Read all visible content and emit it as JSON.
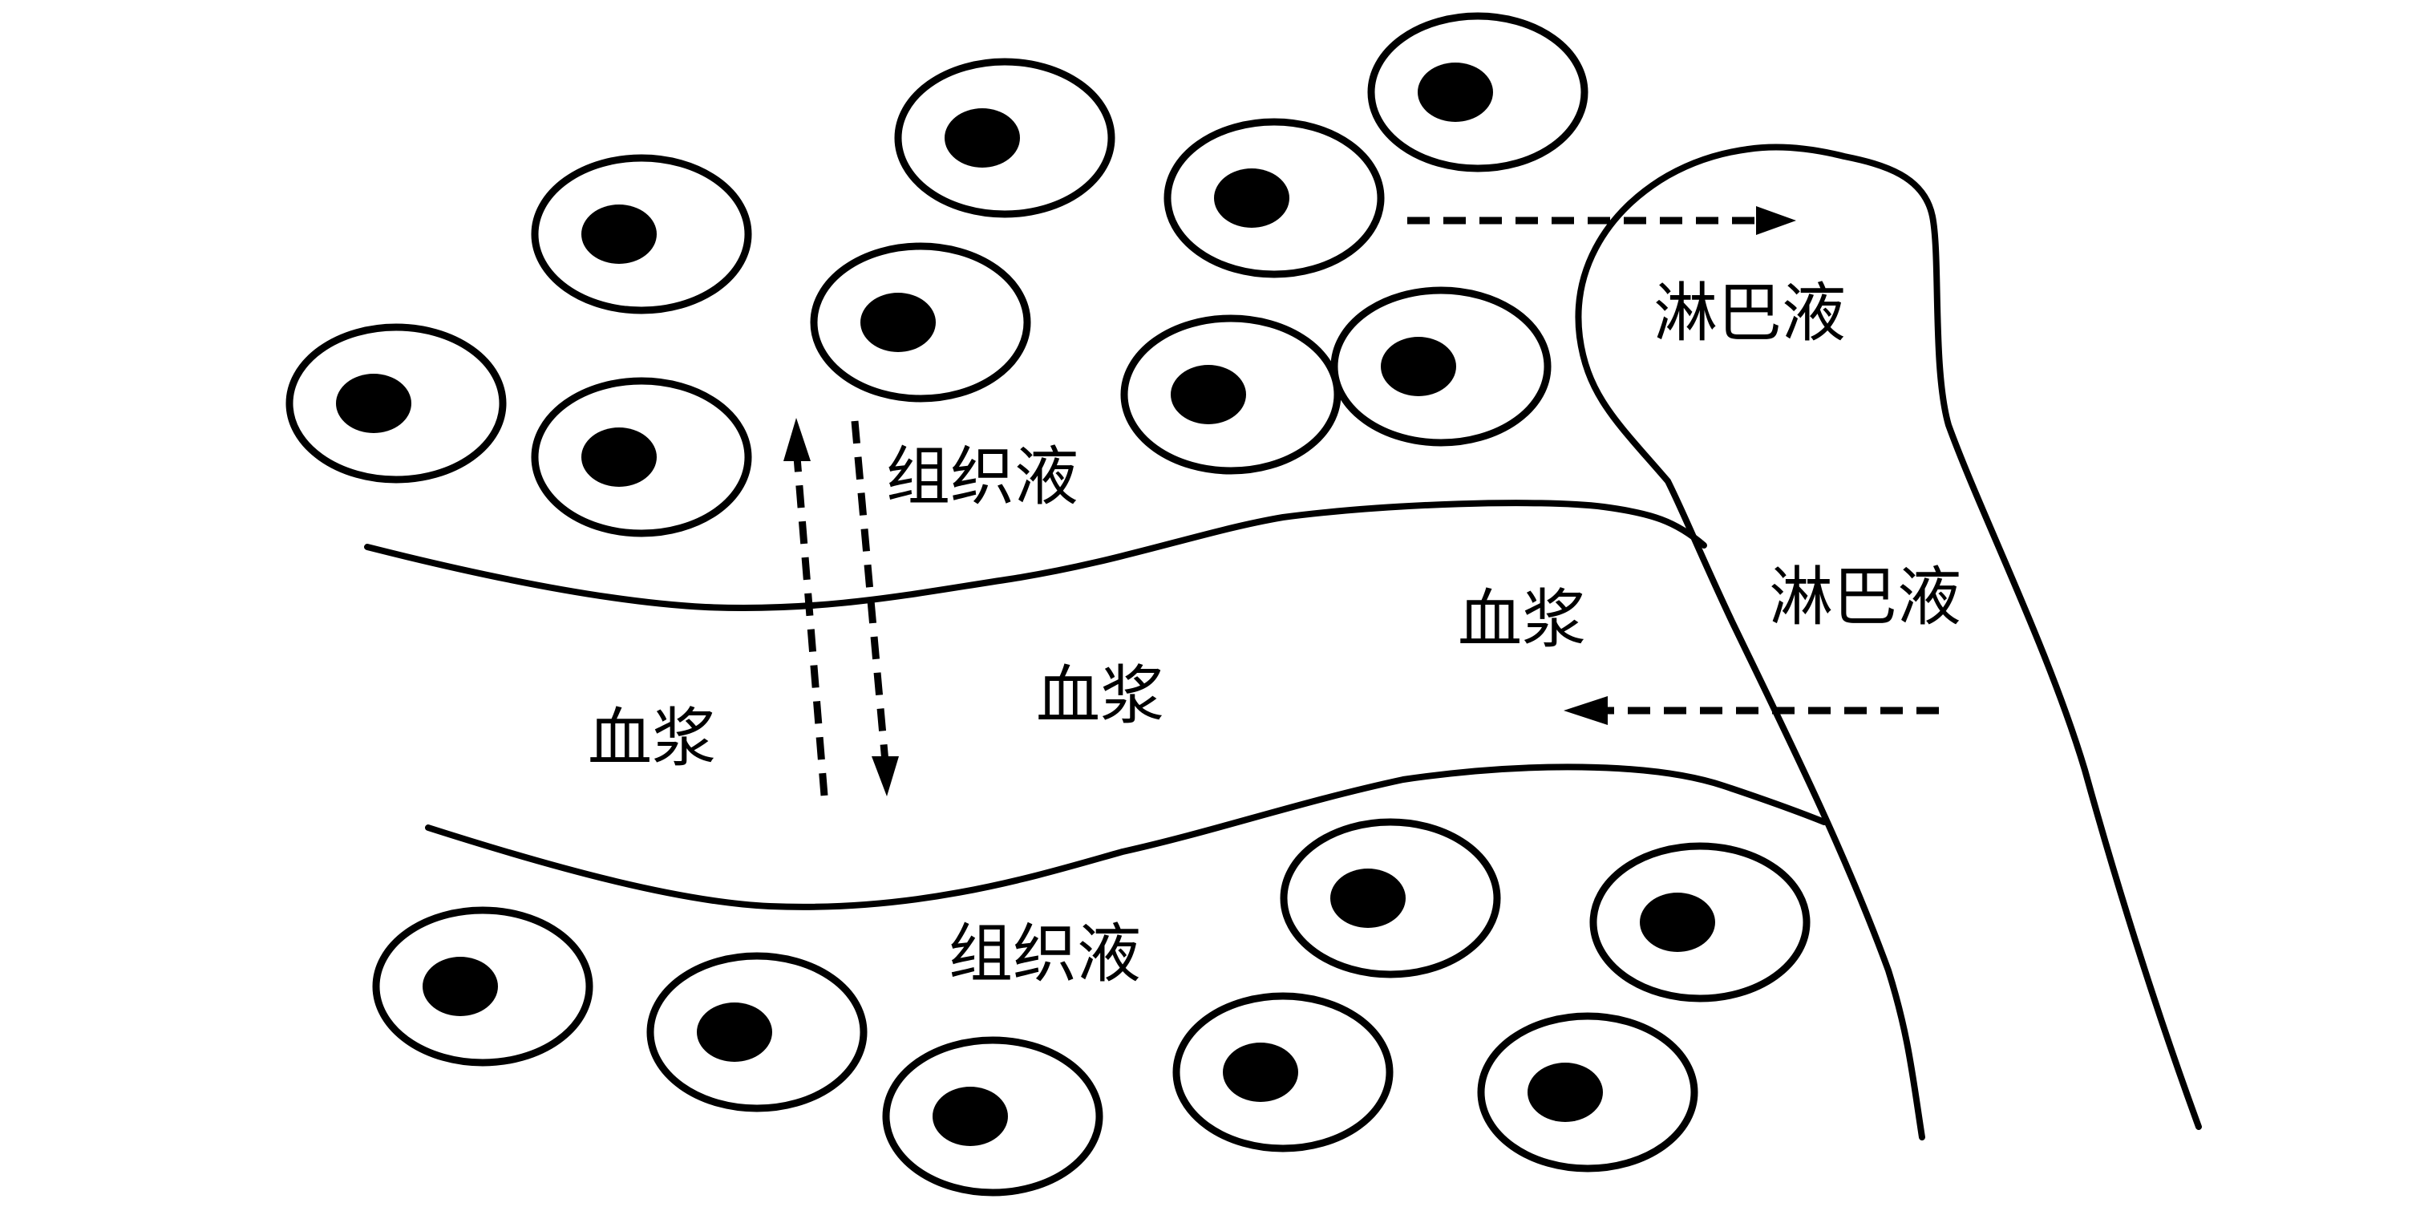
{
  "labels": {
    "tissue_fluid_top": "组织液",
    "tissue_fluid_bottom": "组织液",
    "plasma_left": "血浆",
    "plasma_center": "血浆",
    "plasma_right": "血浆",
    "lymph_top": "淋巴液",
    "lymph_right": "淋巴液"
  },
  "colors": {
    "stroke": "#000000",
    "background": "#ffffff"
  }
}
